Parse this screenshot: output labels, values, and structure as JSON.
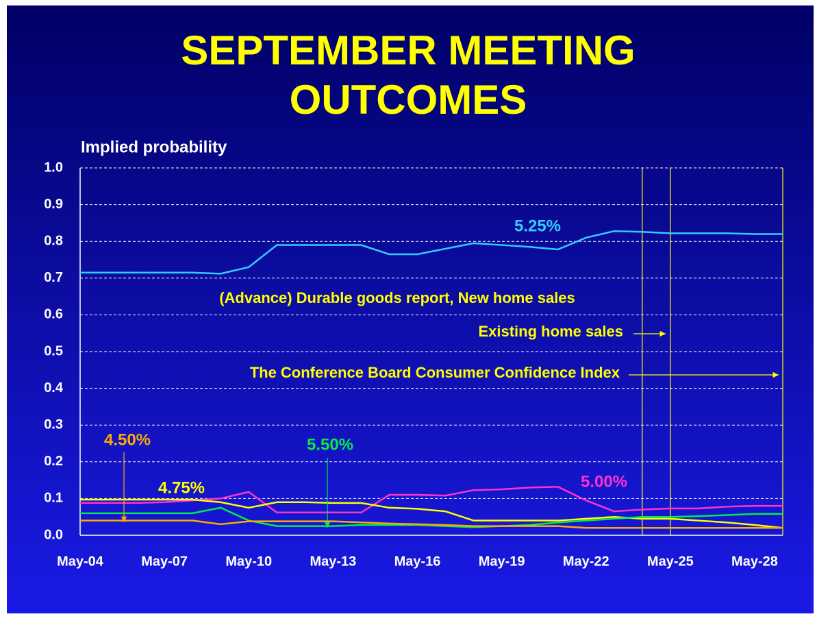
{
  "chart_data": {
    "type": "line",
    "title": "SEPTEMBER MEETING OUTCOMES",
    "y_label": "Implied probability",
    "categories": [
      "May-04",
      null,
      null,
      "May-07",
      null,
      null,
      "May-10",
      null,
      null,
      "May-13",
      null,
      null,
      "May-16",
      null,
      null,
      "May-19",
      null,
      null,
      "May-22",
      null,
      null,
      "May-25",
      null,
      null,
      "May-28",
      null
    ],
    "ylim": [
      0,
      1
    ],
    "yticks": [
      {
        "value": 0,
        "label": "0.0"
      },
      0.1,
      0.2,
      0.3,
      0.4,
      0.5,
      0.6,
      0.7,
      0.8,
      0.9,
      {
        "value": 1,
        "label": "1.0"
      }
    ],
    "grid": true,
    "series": [
      {
        "name": "5.25%",
        "color": "#33ccff",
        "values": [
          0.715,
          0.715,
          0.715,
          0.715,
          0.715,
          0.712,
          0.73,
          0.79,
          0.79,
          0.79,
          0.79,
          0.765,
          0.765,
          0.78,
          0.795,
          0.79,
          0.785,
          0.778,
          0.81,
          0.828,
          0.826,
          0.822,
          0.822,
          0.822,
          0.82,
          0.82
        ]
      },
      {
        "name": "5.00%",
        "color": "#ff33cc",
        "values": [
          0.088,
          0.088,
          0.088,
          0.09,
          0.095,
          0.1,
          0.118,
          0.062,
          0.062,
          0.062,
          0.062,
          0.11,
          0.11,
          0.108,
          0.123,
          0.125,
          0.13,
          0.132,
          0.095,
          0.065,
          0.07,
          0.073,
          0.073,
          0.078,
          0.08,
          0.08
        ]
      },
      {
        "name": "4.75%",
        "color": "#ffff00",
        "values": [
          0.097,
          0.097,
          0.097,
          0.097,
          0.097,
          0.09,
          0.075,
          0.09,
          0.09,
          0.088,
          0.088,
          0.075,
          0.072,
          0.065,
          0.04,
          0.04,
          0.04,
          0.04,
          0.045,
          0.05,
          0.045,
          0.045,
          0.04,
          0.035,
          0.028,
          0.02
        ]
      },
      {
        "name": "5.50%",
        "color": "#00ee44",
        "values": [
          0.06,
          0.06,
          0.06,
          0.06,
          0.06,
          0.075,
          0.04,
          0.025,
          0.025,
          0.025,
          0.028,
          0.028,
          0.028,
          0.025,
          0.022,
          0.025,
          0.028,
          0.035,
          0.04,
          0.045,
          0.05,
          0.05,
          0.052,
          0.055,
          0.058,
          0.058
        ]
      },
      {
        "name": "4.50%",
        "color": "#ffaa00",
        "values": [
          0.04,
          0.04,
          0.04,
          0.04,
          0.04,
          0.03,
          0.038,
          0.038,
          0.038,
          0.038,
          0.035,
          0.032,
          0.03,
          0.028,
          0.025,
          0.025,
          0.025,
          0.025,
          0.02,
          0.02,
          0.02,
          0.02,
          0.02,
          0.02,
          0.02,
          0.02
        ]
      }
    ],
    "events": [
      {
        "text": "(Advance) Durable goods report, New home sales",
        "x": 20
      },
      {
        "text": "Existing home sales",
        "x": 21
      },
      {
        "text": "The Conference Board Consumer Confidence Index",
        "x": 25
      }
    ]
  }
}
